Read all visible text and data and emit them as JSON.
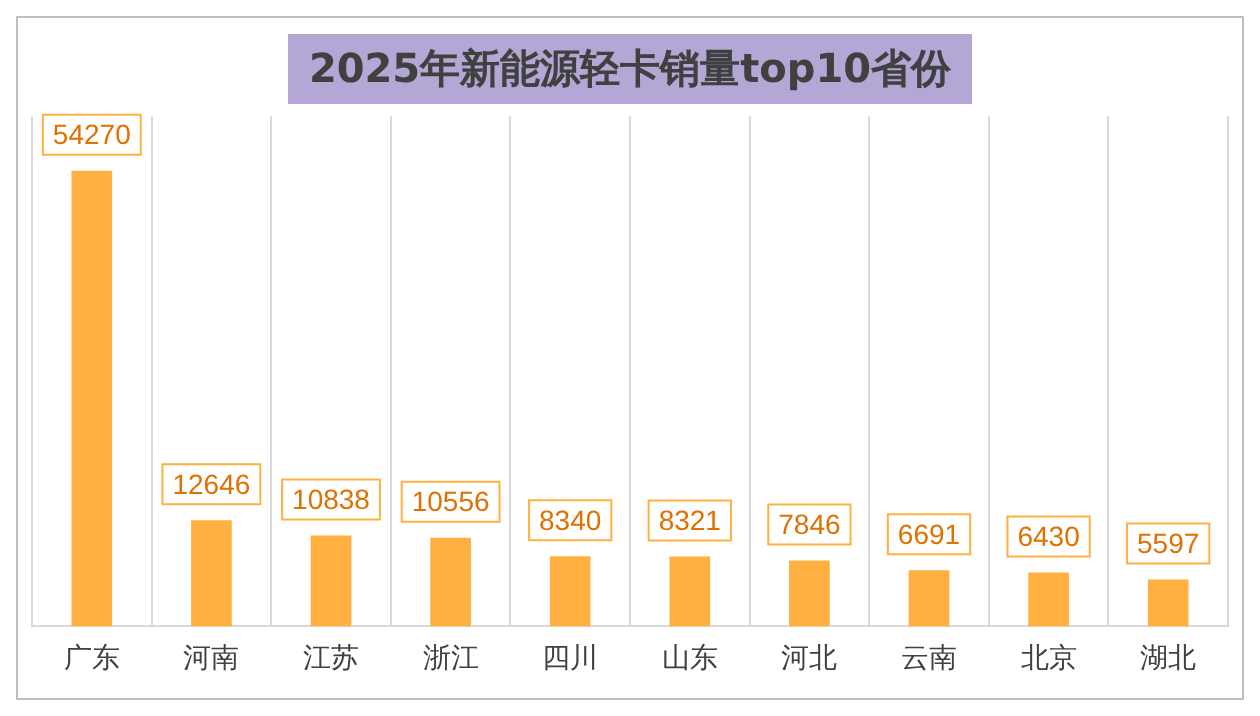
{
  "chart_data": {
    "type": "bar",
    "title": "2025年新能源轻卡销量top10省份",
    "categories": [
      "广东",
      "河南",
      "江苏",
      "浙江",
      "四川",
      "山东",
      "河北",
      "云南",
      "北京",
      "湖北"
    ],
    "values": [
      54270,
      12646,
      10838,
      10556,
      8340,
      8321,
      7846,
      6691,
      6430,
      5597
    ],
    "color": "#ffb040",
    "data_labels": true,
    "grid": "x",
    "legend": false
  }
}
